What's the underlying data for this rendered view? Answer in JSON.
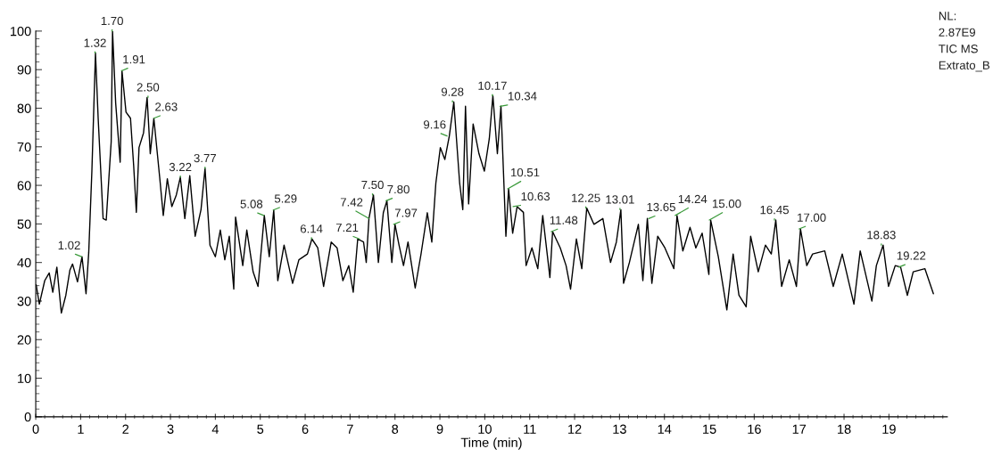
{
  "chart_data": {
    "type": "line",
    "xlabel": "Time (min)",
    "xlim": [
      0,
      20.3
    ],
    "xticks": [
      0,
      1,
      2,
      3,
      4,
      5,
      6,
      7,
      8,
      9,
      10,
      11,
      12,
      13,
      14,
      15,
      16,
      17,
      18,
      19
    ],
    "ylim": [
      0,
      100
    ],
    "yticks": [
      0,
      10,
      20,
      30,
      40,
      50,
      60,
      70,
      80,
      90,
      100
    ],
    "grid": false,
    "marker": "none",
    "line_style": "solid",
    "series": [
      {
        "color": "#000000",
        "x": [
          0.01,
          0.08,
          0.2,
          0.3,
          0.38,
          0.47,
          0.57,
          0.67,
          0.76,
          0.82,
          0.93,
          1.03,
          1.12,
          1.18,
          1.25,
          1.33,
          1.39,
          1.5,
          1.57,
          1.68,
          1.71,
          1.78,
          1.88,
          1.92,
          2.01,
          2.11,
          2.18,
          2.24,
          2.3,
          2.4,
          2.48,
          2.55,
          2.63,
          2.76,
          2.84,
          2.93,
          3.03,
          3.13,
          3.22,
          3.32,
          3.43,
          3.55,
          3.68,
          3.77,
          3.88,
          4.0,
          4.11,
          4.21,
          4.31,
          4.41,
          4.45,
          4.61,
          4.7,
          4.84,
          4.95,
          5.09,
          5.2,
          5.3,
          5.39,
          5.53,
          5.72,
          5.86,
          6.05,
          6.15,
          6.28,
          6.41,
          6.58,
          6.71,
          6.84,
          6.97,
          7.07,
          7.17,
          7.3,
          7.36,
          7.42,
          7.52,
          7.63,
          7.74,
          7.82,
          7.93,
          8.0,
          8.09,
          8.19,
          8.29,
          8.45,
          8.58,
          8.72,
          8.82,
          8.91,
          9.01,
          9.11,
          9.21,
          9.31,
          9.44,
          9.51,
          9.57,
          9.64,
          9.74,
          9.87,
          9.99,
          10.1,
          10.18,
          10.28,
          10.36,
          10.47,
          10.53,
          10.62,
          10.72,
          10.86,
          10.92,
          11.05,
          11.18,
          11.29,
          11.45,
          11.51,
          11.68,
          11.81,
          11.91,
          12.04,
          12.16,
          12.27,
          12.43,
          12.63,
          12.8,
          12.93,
          13.03,
          13.09,
          13.22,
          13.42,
          13.52,
          13.62,
          13.72,
          13.85,
          14.01,
          14.21,
          14.28,
          14.41,
          14.57,
          14.7,
          14.84,
          14.99,
          15.03,
          15.2,
          15.39,
          15.53,
          15.66,
          15.82,
          15.92,
          16.09,
          16.25,
          16.38,
          16.48,
          16.61,
          16.78,
          16.94,
          17.03,
          17.17,
          17.3,
          17.57,
          17.76,
          17.96,
          18.22,
          18.36,
          18.62,
          18.72,
          18.87,
          18.99,
          19.14,
          19.26,
          19.41,
          19.54,
          19.8,
          19.99
        ],
        "values": [
          34.2,
          29.2,
          35.3,
          37.3,
          32.3,
          38.8,
          26.9,
          31.5,
          38,
          39.6,
          35,
          41.5,
          31.9,
          42.6,
          63.7,
          94.3,
          77.4,
          51.4,
          51,
          71.3,
          100,
          81.3,
          66,
          89.7,
          79,
          77.4,
          65.2,
          53,
          69.8,
          73.6,
          82.8,
          68.2,
          77.4,
          62.1,
          52.2,
          61.7,
          54.5,
          57.5,
          62.1,
          51.4,
          62.5,
          46.8,
          53.7,
          64.4,
          44.5,
          41.5,
          48.4,
          40.7,
          46.8,
          33.1,
          51.8,
          39.2,
          48.4,
          37.6,
          33.8,
          52.2,
          41.5,
          53.6,
          35.3,
          44.5,
          34.6,
          40.7,
          42.2,
          46.1,
          43.8,
          33.8,
          45.3,
          43.8,
          35.3,
          39.2,
          32.3,
          46.1,
          45.3,
          40,
          51.4,
          57.5,
          40,
          52.9,
          56,
          40,
          49.9,
          44.5,
          39.2,
          45.3,
          33.4,
          42.2,
          52.9,
          45.3,
          60.6,
          69.8,
          66.7,
          72.8,
          81.6,
          60.6,
          53.7,
          80.5,
          55.2,
          75.9,
          68.2,
          63.7,
          72.1,
          83.2,
          68.2,
          80.5,
          46.8,
          59.1,
          47.6,
          54.5,
          53,
          39.2,
          43.8,
          38.4,
          52.2,
          36.1,
          48,
          43.8,
          39.2,
          33.1,
          46.1,
          38.4,
          54.1,
          49.9,
          51.4,
          40,
          45.3,
          53.7,
          34.6,
          40,
          49.9,
          35.3,
          51.4,
          34.6,
          46.8,
          43.8,
          38.4,
          52.2,
          43,
          49.1,
          43.8,
          47.6,
          36.9,
          51,
          41.5,
          27.7,
          42.2,
          31.5,
          28.5,
          46.8,
          37.6,
          44.5,
          42.2,
          51,
          33.8,
          40.7,
          33.8,
          48.7,
          39.2,
          42.2,
          43,
          33.8,
          42.2,
          29.2,
          43,
          30,
          39.2,
          44.5,
          33.8,
          39.2,
          38.8,
          31.5,
          37.6,
          38.4,
          31.9
        ]
      }
    ],
    "annotations": [
      {
        "text": "1.02",
        "x": 1.02,
        "y": 41.5
      },
      {
        "text": "1.32",
        "x": 1.32,
        "y": 94.3
      },
      {
        "text": "1.70",
        "x": 1.7,
        "y": 100
      },
      {
        "text": "1.91",
        "x": 1.91,
        "y": 89.7
      },
      {
        "text": "2.50",
        "x": 2.5,
        "y": 82.8
      },
      {
        "text": "2.63",
        "x": 2.63,
        "y": 77.4
      },
      {
        "text": "3.22",
        "x": 3.22,
        "y": 62.1
      },
      {
        "text": "3.77",
        "x": 3.77,
        "y": 64.4
      },
      {
        "text": "5.08",
        "x": 5.08,
        "y": 52.2
      },
      {
        "text": "5.29",
        "x": 5.29,
        "y": 53.6
      },
      {
        "text": "6.14",
        "x": 6.14,
        "y": 46.1
      },
      {
        "text": "7.21",
        "x": 7.21,
        "y": 46.1
      },
      {
        "text": "7.42",
        "x": 7.42,
        "y": 51.4
      },
      {
        "text": "7.50",
        "x": 7.5,
        "y": 57.5
      },
      {
        "text": "7.80",
        "x": 7.8,
        "y": 56
      },
      {
        "text": "7.97",
        "x": 7.97,
        "y": 49.9
      },
      {
        "text": "9.16",
        "x": 9.16,
        "y": 72.8
      },
      {
        "text": "9.28",
        "x": 9.28,
        "y": 81.6
      },
      {
        "text": "10.17",
        "x": 10.17,
        "y": 83.2
      },
      {
        "text": "10.34",
        "x": 10.34,
        "y": 80.5
      },
      {
        "text": "10.51",
        "x": 10.51,
        "y": 59.1
      },
      {
        "text": "10.63",
        "x": 10.63,
        "y": 54.5
      },
      {
        "text": "11.48",
        "x": 11.48,
        "y": 48
      },
      {
        "text": "12.25",
        "x": 12.25,
        "y": 54.1
      },
      {
        "text": "13.01",
        "x": 13.01,
        "y": 53.7
      },
      {
        "text": "13.65",
        "x": 13.65,
        "y": 51.4
      },
      {
        "text": "14.24",
        "x": 14.24,
        "y": 52.2
      },
      {
        "text": "15.00",
        "x": 15.0,
        "y": 51
      },
      {
        "text": "16.45",
        "x": 16.45,
        "y": 51
      },
      {
        "text": "17.00",
        "x": 17.0,
        "y": 48.7
      },
      {
        "text": "18.83",
        "x": 18.83,
        "y": 44.5
      },
      {
        "text": "19.22",
        "x": 19.22,
        "y": 38.8
      },
      "NL:",
      "2.87E9",
      "TIC MS",
      "Extrato_B"
    ]
  }
}
